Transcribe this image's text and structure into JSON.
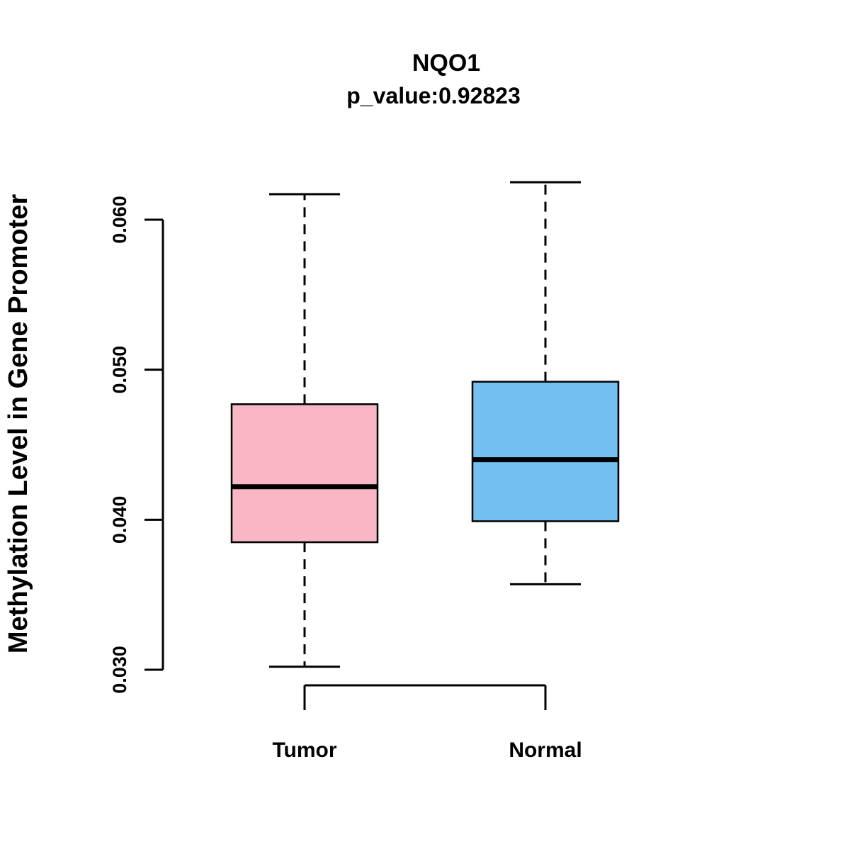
{
  "title": "NQO1",
  "subtitle": "p_value:0.92823",
  "ylabel": "Methylation Level in Gene Promoter",
  "chart_data": {
    "type": "boxplot",
    "title": "NQO1",
    "subtitle": "p_value:0.92823",
    "ylabel": "Methylation Level in Gene Promoter",
    "xlabel": "",
    "categories": [
      "Tumor",
      "Normal"
    ],
    "ylim": [
      0.03,
      0.06
    ],
    "yticks": [
      0.03,
      0.04,
      0.05,
      0.06
    ],
    "ytick_labels": [
      "0.030",
      "0.040",
      "0.050",
      "0.060"
    ],
    "grid": false,
    "legend": "none",
    "series": [
      {
        "name": "Tumor",
        "color": "#F9B6C5",
        "stroke": "#000000",
        "whisker_low": 0.0302,
        "q1": 0.0385,
        "median": 0.0422,
        "q3": 0.0477,
        "whisker_high": 0.0617
      },
      {
        "name": "Normal",
        "color": "#73BFF0",
        "stroke": "#000000",
        "whisker_low": 0.0357,
        "q1": 0.0399,
        "median": 0.044,
        "q3": 0.0492,
        "whisker_high": 0.0625
      }
    ]
  }
}
